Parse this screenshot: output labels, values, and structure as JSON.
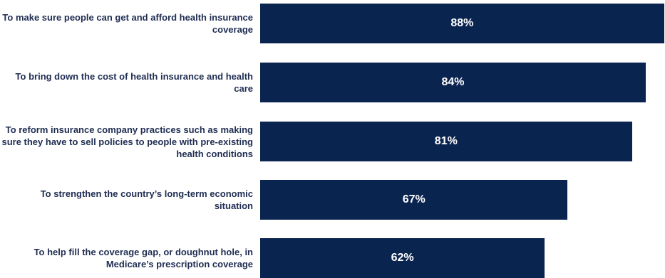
{
  "chart_data": {
    "type": "bar",
    "orientation": "horizontal",
    "categories": [
      "To make sure people can get and afford health insurance coverage",
      "To bring down the cost of health insurance and health care",
      "To reform insurance company practices such as making sure they have to sell policies to people with pre-existing health conditions",
      "To strengthen the country’s long-term economic situation",
      "To help fill the coverage gap, or doughnut hole, in Medicare’s prescription coverage"
    ],
    "values": [
      88,
      84,
      81,
      67,
      62
    ],
    "value_labels": [
      "88%",
      "84%",
      "81%",
      "67%",
      "62%"
    ],
    "xlim": [
      0,
      100
    ],
    "grid": false,
    "bar_color": "#0a2450",
    "label_color": "#1f2d52"
  }
}
